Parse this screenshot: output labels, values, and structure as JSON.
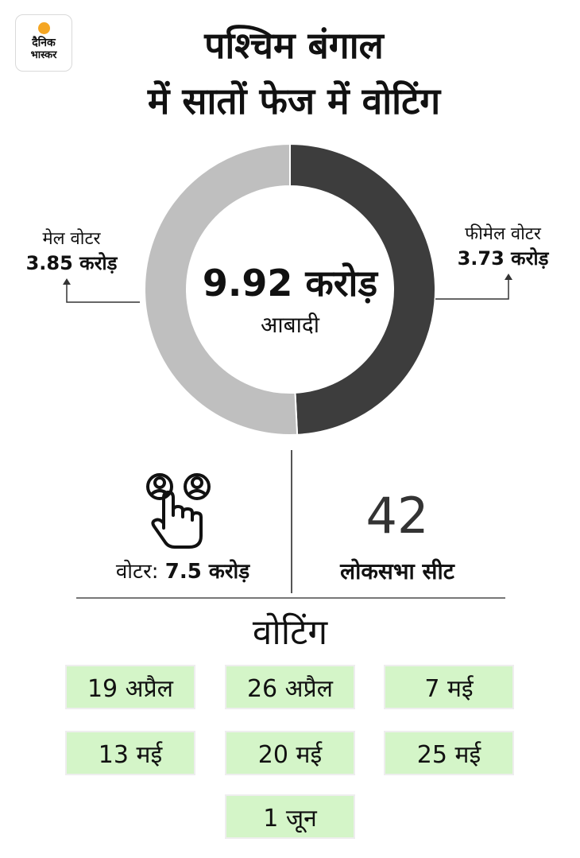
{
  "logo": {
    "line1": "दैनिक",
    "line2": "भास्कर",
    "sun_color": "#f5a623"
  },
  "title": {
    "line1": "पश्चिम बंगाल",
    "line2": "में सातों फेज में वोटिंग"
  },
  "chart_data": {
    "type": "pie",
    "style": "donut",
    "center": {
      "value": "9.92 करोड़",
      "label": "आबादी"
    },
    "slices": [
      {
        "label": "मेल वोटर",
        "value": 3.85,
        "display": "3.85 करोड़",
        "color": "#bfbfbf"
      },
      {
        "label": "फीमेल वोटर",
        "value": 3.73,
        "display": "3.73 करोड़",
        "color": "#3d3d3d"
      }
    ]
  },
  "stats": {
    "voters": {
      "label": "वोटर:",
      "value": "7.5 करोड़",
      "icon": "voter-hand-icon"
    },
    "seats": {
      "value": "42",
      "label": "लोकसभा सीट"
    }
  },
  "voting": {
    "heading": "वोटिंग",
    "phases": [
      "19 अप्रैल",
      "26 अप्रैल",
      "7 मई",
      "13 मई",
      "20 मई",
      "25 मई",
      "1 जून"
    ],
    "box_color": "#d4f5c8"
  }
}
